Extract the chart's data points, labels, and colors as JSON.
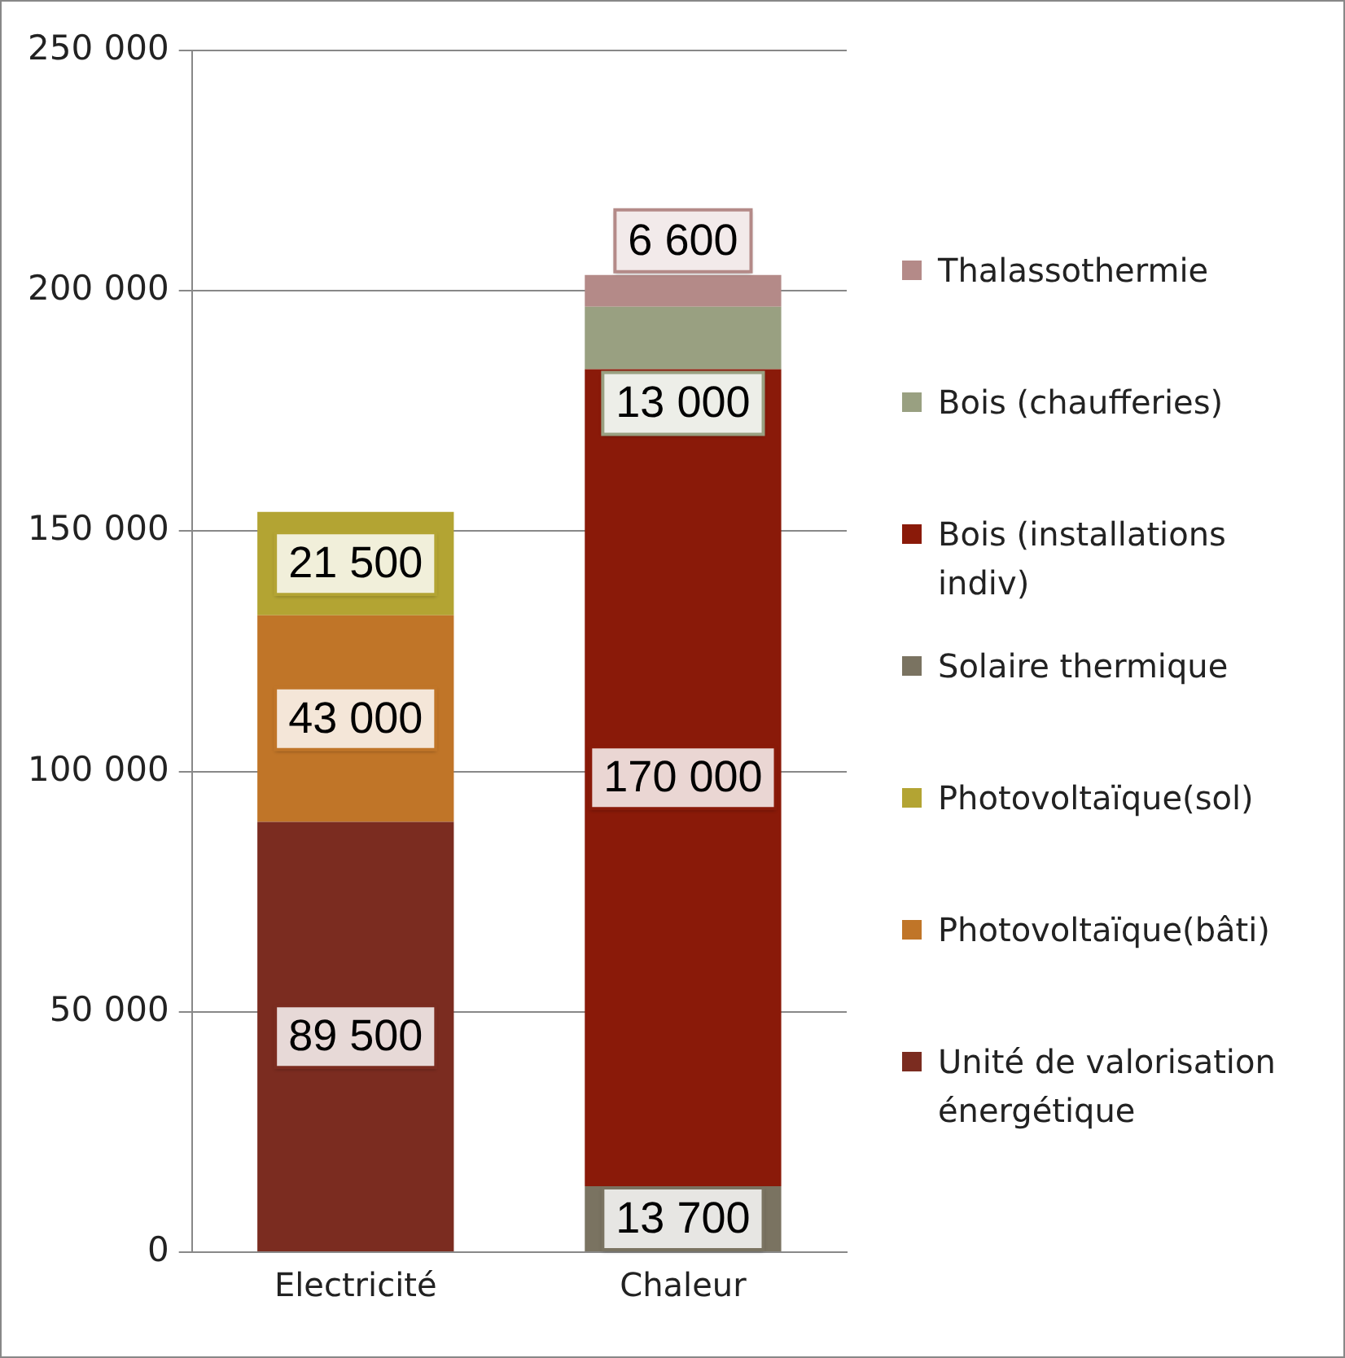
{
  "chart_data": {
    "type": "bar",
    "stacked": true,
    "categories": [
      "Electricité",
      "Chaleur"
    ],
    "series": [
      {
        "name": "Unité de valorisation énergétique",
        "color": "#7b2c20",
        "values": [
          89500,
          null
        ],
        "value_labels": [
          "89 500",
          null
        ]
      },
      {
        "name": "Photovoltaïque(bâti)",
        "color": "#c07528",
        "values": [
          43000,
          null
        ],
        "value_labels": [
          "43 000",
          null
        ]
      },
      {
        "name": "Photovoltaïque(sol)",
        "color": "#b3a433",
        "values": [
          21500,
          null
        ],
        "value_labels": [
          "21 500",
          null
        ]
      },
      {
        "name": "Solaire thermique",
        "color": "#7a7361",
        "values": [
          null,
          13700
        ],
        "value_labels": [
          null,
          "13 700"
        ]
      },
      {
        "name": "Bois (installations indiv)",
        "color": "#8a1a09",
        "values": [
          null,
          170000
        ],
        "value_labels": [
          null,
          "170 000"
        ]
      },
      {
        "name": "Bois (chaufferies)",
        "color": "#99a081",
        "values": [
          null,
          13000
        ],
        "value_labels": [
          null,
          "13 000"
        ]
      },
      {
        "name": "Thalassothermie",
        "color": "#b48a88",
        "values": [
          null,
          6600
        ],
        "value_labels": [
          null,
          "6 600"
        ]
      }
    ],
    "ylim": [
      0,
      250000
    ],
    "yticks": [
      {
        "value": 0,
        "label": "0"
      },
      {
        "value": 50000,
        "label": "50 000"
      },
      {
        "value": 100000,
        "label": "100 000"
      },
      {
        "value": 150000,
        "label": "150 000"
      },
      {
        "value": 200000,
        "label": "200 000"
      },
      {
        "value": 250000,
        "label": "250 000"
      }
    ],
    "grid": "y",
    "legend": "right"
  }
}
